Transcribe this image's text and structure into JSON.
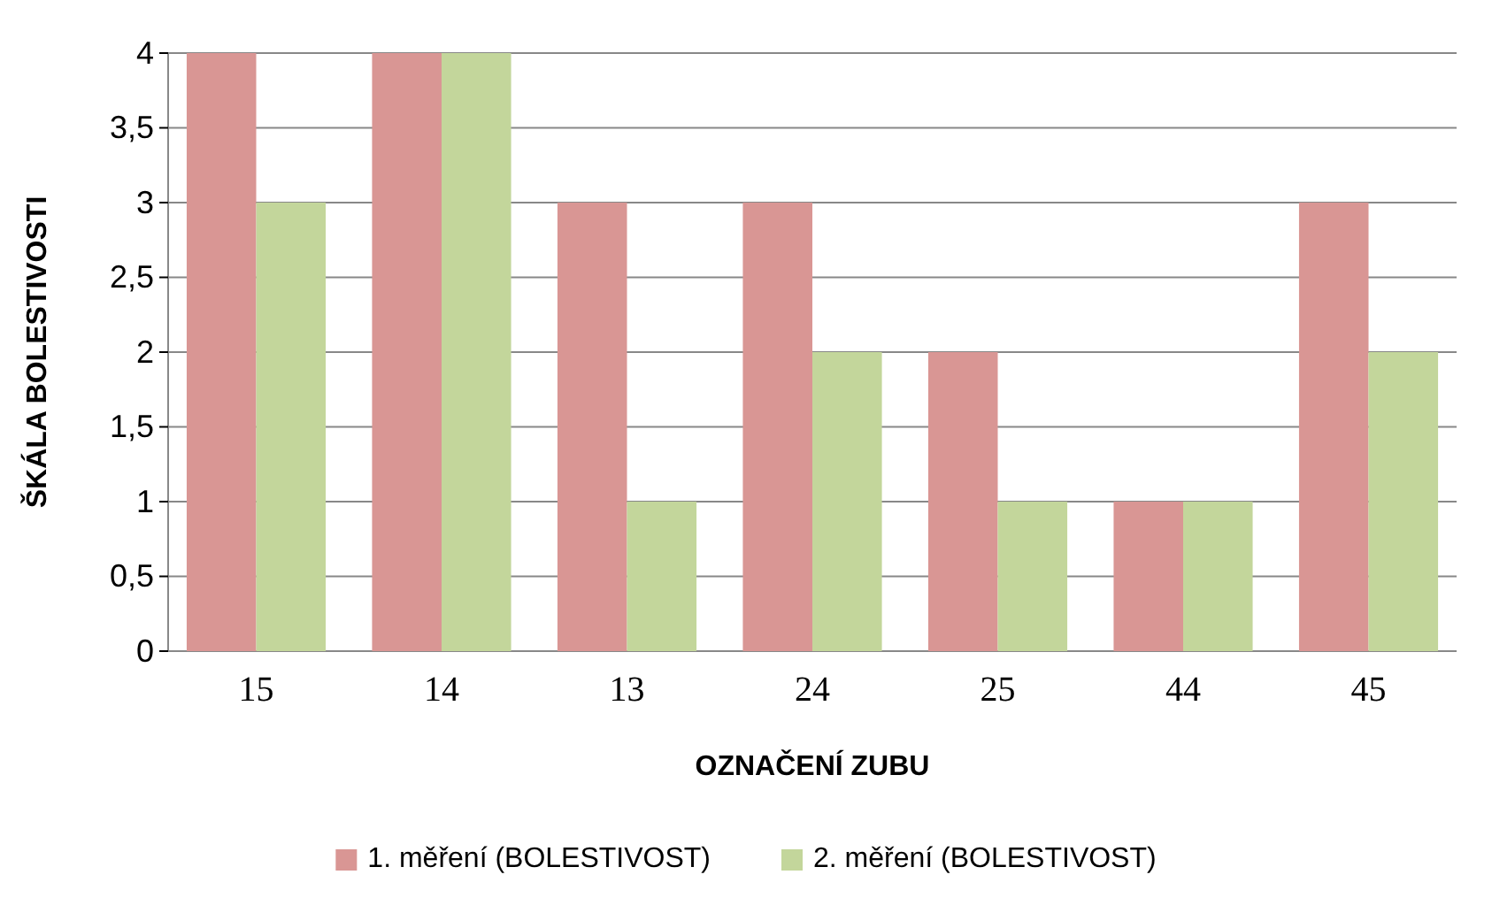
{
  "chart_data": {
    "type": "bar",
    "xlabel": "OZNAČENÍ ZUBU",
    "ylabel": "ŠKÁLA BOLESTIVOSTI",
    "categories": [
      "15",
      "14",
      "13",
      "24",
      "25",
      "44",
      "45"
    ],
    "series": [
      {
        "name": "1. měření (BOLESTIVOST)",
        "color": "#d99694",
        "values": [
          4,
          4,
          3,
          3,
          2,
          1,
          3
        ]
      },
      {
        "name": "2. měření (BOLESTIVOST)",
        "color": "#c3d69b",
        "values": [
          3,
          4,
          1,
          2,
          1,
          1,
          2
        ]
      }
    ],
    "ylim": [
      0,
      4
    ],
    "yticks": [
      0,
      {
        "value": 0.5,
        "label": "0,5"
      },
      1,
      {
        "value": 1.5,
        "label": "1,5"
      },
      2,
      {
        "value": 2.5,
        "label": "2,5"
      },
      3,
      {
        "value": 3.5,
        "label": "3,5"
      },
      4
    ],
    "grid": "y",
    "legend": "bottom"
  }
}
